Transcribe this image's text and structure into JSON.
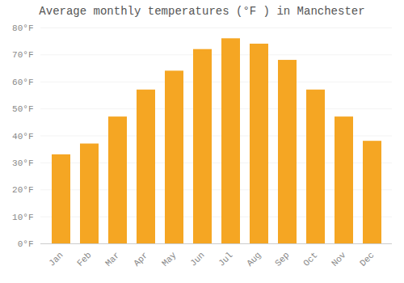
{
  "chart_data": {
    "type": "bar",
    "title": "Average monthly temperatures (°F ) in Manchester",
    "categories": [
      "Jan",
      "Feb",
      "Mar",
      "Apr",
      "May",
      "Jun",
      "Jul",
      "Aug",
      "Sep",
      "Oct",
      "Nov",
      "Dec"
    ],
    "values": [
      33,
      37,
      47,
      57,
      64,
      72,
      76,
      74,
      68,
      57,
      47,
      38
    ],
    "color": "#F5A623",
    "ylim": [
      0,
      80
    ],
    "yticks": [
      {
        "value": 0,
        "label": "0°F"
      },
      {
        "value": 10,
        "label": "10°F"
      },
      {
        "value": 20,
        "label": "20°F"
      },
      {
        "value": 30,
        "label": "30°F"
      },
      {
        "value": 40,
        "label": "40°F"
      },
      {
        "value": 50,
        "label": "50°F"
      },
      {
        "value": 60,
        "label": "60°F"
      },
      {
        "value": 70,
        "label": "70°F"
      },
      {
        "value": 80,
        "label": "80°F"
      }
    ],
    "grid": true
  }
}
